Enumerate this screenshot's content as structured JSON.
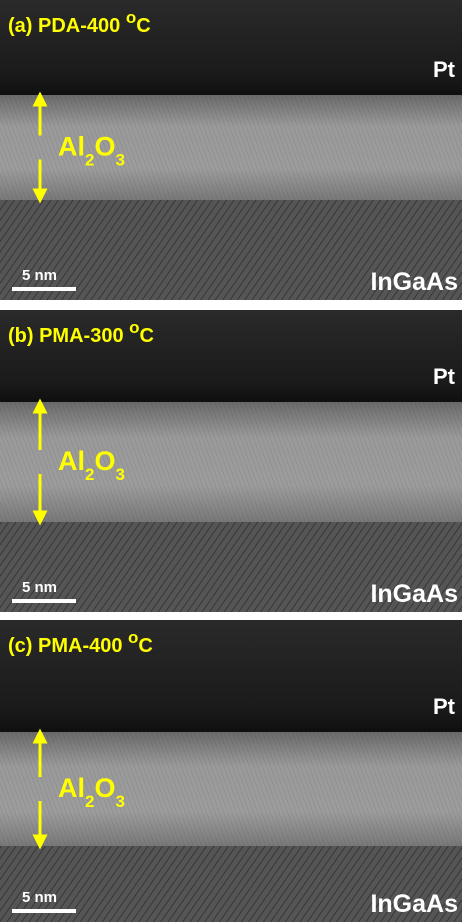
{
  "panels": [
    {
      "label": "(a) PDA-400 ",
      "degree": "o",
      "unit": "C",
      "top_layer": "Pt",
      "oxide": {
        "base1": "Al",
        "sub1": "2",
        "base2": "O",
        "sub2": "3"
      },
      "substrate": "InGaAs",
      "scale_bar": "5 nm"
    },
    {
      "label": "(b) PMA-300 ",
      "degree": "o",
      "unit": "C",
      "top_layer": "Pt",
      "oxide": {
        "base1": "Al",
        "sub1": "2",
        "base2": "O",
        "sub2": "3"
      },
      "substrate": "InGaAs",
      "scale_bar": "5 nm"
    },
    {
      "label": "(c) PMA-400 ",
      "degree": "o",
      "unit": "C",
      "top_layer": "Pt",
      "oxide": {
        "base1": "Al",
        "sub1": "2",
        "base2": "O",
        "sub2": "3"
      },
      "substrate": "InGaAs",
      "scale_bar": "5 nm"
    }
  ]
}
